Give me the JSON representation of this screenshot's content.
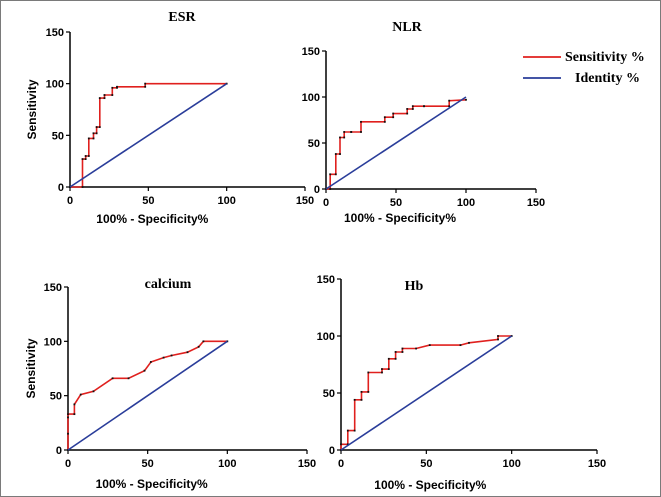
{
  "legend": {
    "placement": "top-right",
    "items": [
      {
        "label": "Sensitivity %",
        "color": "#e0201e"
      },
      {
        "label": "Identity %",
        "color": "#2a3d9a"
      }
    ]
  },
  "chart_data": [
    {
      "id": "esr",
      "type": "line",
      "title": "ESR",
      "xlabel": "100% - Specificity%",
      "ylabel": "Sensitivity",
      "xlim": [
        0,
        150
      ],
      "ylim": [
        0,
        150
      ],
      "xticks": [
        "0",
        "50",
        "100",
        "150"
      ],
      "yticks": [
        "0",
        "50",
        "100",
        "150"
      ],
      "series": [
        {
          "name": "Sensitivity %",
          "x": [
            0,
            0,
            8,
            8,
            10,
            10,
            12,
            12,
            15,
            15,
            17,
            17,
            19,
            19,
            22,
            22,
            27,
            27,
            30,
            30,
            48,
            48,
            100
          ],
          "y": [
            0,
            0,
            0,
            27,
            27,
            30,
            30,
            47,
            47,
            52,
            52,
            58,
            58,
            86,
            86,
            89,
            89,
            96,
            96,
            97,
            97,
            100,
            100
          ]
        },
        {
          "name": "Identity %",
          "x": [
            0,
            100
          ],
          "y": [
            0,
            100
          ]
        }
      ]
    },
    {
      "id": "nlr",
      "type": "line",
      "title": "NLR",
      "xlabel": "100% - Specificity%",
      "ylabel": "",
      "xlim": [
        0,
        150
      ],
      "ylim": [
        0,
        150
      ],
      "xticks": [
        "0",
        "50",
        "100",
        "150"
      ],
      "yticks": [
        "0",
        "50",
        "100",
        "150"
      ],
      "series": [
        {
          "name": "Sensitivity %",
          "x": [
            0,
            3,
            3,
            7,
            7,
            10,
            10,
            13,
            13,
            18,
            18,
            25,
            25,
            42,
            42,
            48,
            48,
            58,
            58,
            62,
            62,
            70,
            70,
            88,
            88,
            100
          ],
          "y": [
            0,
            0,
            16,
            16,
            38,
            38,
            56,
            56,
            62,
            62,
            62,
            62,
            73,
            73,
            78,
            78,
            82,
            82,
            87,
            87,
            90,
            90,
            90,
            90,
            96,
            97
          ]
        },
        {
          "name": "Identity %",
          "x": [
            0,
            100
          ],
          "y": [
            0,
            100
          ]
        }
      ]
    },
    {
      "id": "calcium",
      "type": "line",
      "title": "calcium",
      "xlabel": "100% - Specificity%",
      "ylabel": "Sensitivity",
      "xlim": [
        0,
        150
      ],
      "ylim": [
        0,
        150
      ],
      "xticks": [
        "0",
        "50",
        "100",
        "150"
      ],
      "yticks": [
        "0",
        "50",
        "100",
        "150"
      ],
      "series": [
        {
          "name": "Sensitivity %",
          "x": [
            0,
            0,
            0,
            0,
            4,
            4,
            8,
            16,
            28,
            38,
            48,
            52,
            60,
            65,
            75,
            82,
            85,
            100
          ],
          "y": [
            0,
            15,
            30,
            33,
            33,
            42,
            51,
            54,
            66,
            66,
            73,
            81,
            85,
            87,
            90,
            95,
            100,
            100
          ]
        },
        {
          "name": "Identity %",
          "x": [
            0,
            100
          ],
          "y": [
            0,
            100
          ]
        }
      ]
    },
    {
      "id": "hb",
      "type": "line",
      "title": "Hb",
      "xlabel": "100% - Specificity%",
      "ylabel": "",
      "xlim": [
        0,
        150
      ],
      "ylim": [
        0,
        150
      ],
      "xticks": [
        "0",
        "50",
        "100",
        "150"
      ],
      "yticks": [
        "0",
        "50",
        "100",
        "150"
      ],
      "series": [
        {
          "name": "Sensitivity %",
          "x": [
            0,
            0,
            4,
            4,
            8,
            8,
            12,
            12,
            16,
            16,
            24,
            24,
            28,
            28,
            32,
            32,
            36,
            36,
            44,
            52,
            70,
            75,
            92,
            92,
            100
          ],
          "y": [
            0,
            5,
            5,
            17,
            17,
            44,
            44,
            51,
            51,
            68,
            68,
            71,
            71,
            80,
            80,
            86,
            86,
            89,
            89,
            92,
            92,
            94,
            97,
            100,
            100
          ]
        },
        {
          "name": "Identity %",
          "x": [
            0,
            100
          ],
          "y": [
            0,
            100
          ]
        }
      ]
    }
  ]
}
